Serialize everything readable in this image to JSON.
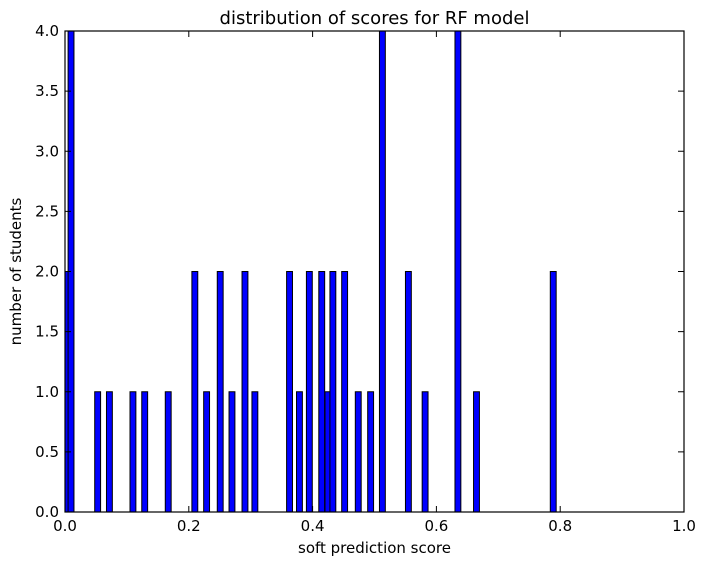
{
  "chart_data": {
    "type": "bar",
    "title": "distribution of scores for RF model",
    "xlabel": "soft prediction score",
    "ylabel": "number of students",
    "xlim": [
      0.0,
      1.0
    ],
    "ylim": [
      0.0,
      4.0
    ],
    "xticks": [
      "0.0",
      "0.2",
      "0.4",
      "0.6",
      "0.8",
      "1.0"
    ],
    "yticks": [
      "0.0",
      "0.5",
      "1.0",
      "1.5",
      "2.0",
      "2.5",
      "3.0",
      "3.5",
      "4.0"
    ],
    "grid": false,
    "bar_color": "#0000ff",
    "bar_edge_color": "#000000",
    "bin_width": 0.0095,
    "bins": [
      {
        "x": 0.0,
        "count": 2
      },
      {
        "x": 0.005,
        "count": 4
      },
      {
        "x": 0.048,
        "count": 1
      },
      {
        "x": 0.067,
        "count": 1
      },
      {
        "x": 0.105,
        "count": 1
      },
      {
        "x": 0.124,
        "count": 1
      },
      {
        "x": 0.162,
        "count": 1
      },
      {
        "x": 0.205,
        "count": 2
      },
      {
        "x": 0.224,
        "count": 1
      },
      {
        "x": 0.246,
        "count": 2
      },
      {
        "x": 0.265,
        "count": 1
      },
      {
        "x": 0.286,
        "count": 2
      },
      {
        "x": 0.302,
        "count": 1
      },
      {
        "x": 0.358,
        "count": 2
      },
      {
        "x": 0.374,
        "count": 1
      },
      {
        "x": 0.39,
        "count": 2
      },
      {
        "x": 0.41,
        "count": 2
      },
      {
        "x": 0.42,
        "count": 1
      },
      {
        "x": 0.428,
        "count": 2
      },
      {
        "x": 0.447,
        "count": 2
      },
      {
        "x": 0.469,
        "count": 1
      },
      {
        "x": 0.489,
        "count": 1
      },
      {
        "x": 0.508,
        "count": 4
      },
      {
        "x": 0.55,
        "count": 2
      },
      {
        "x": 0.577,
        "count": 1
      },
      {
        "x": 0.63,
        "count": 4
      },
      {
        "x": 0.66,
        "count": 1
      },
      {
        "x": 0.784,
        "count": 2
      }
    ]
  }
}
